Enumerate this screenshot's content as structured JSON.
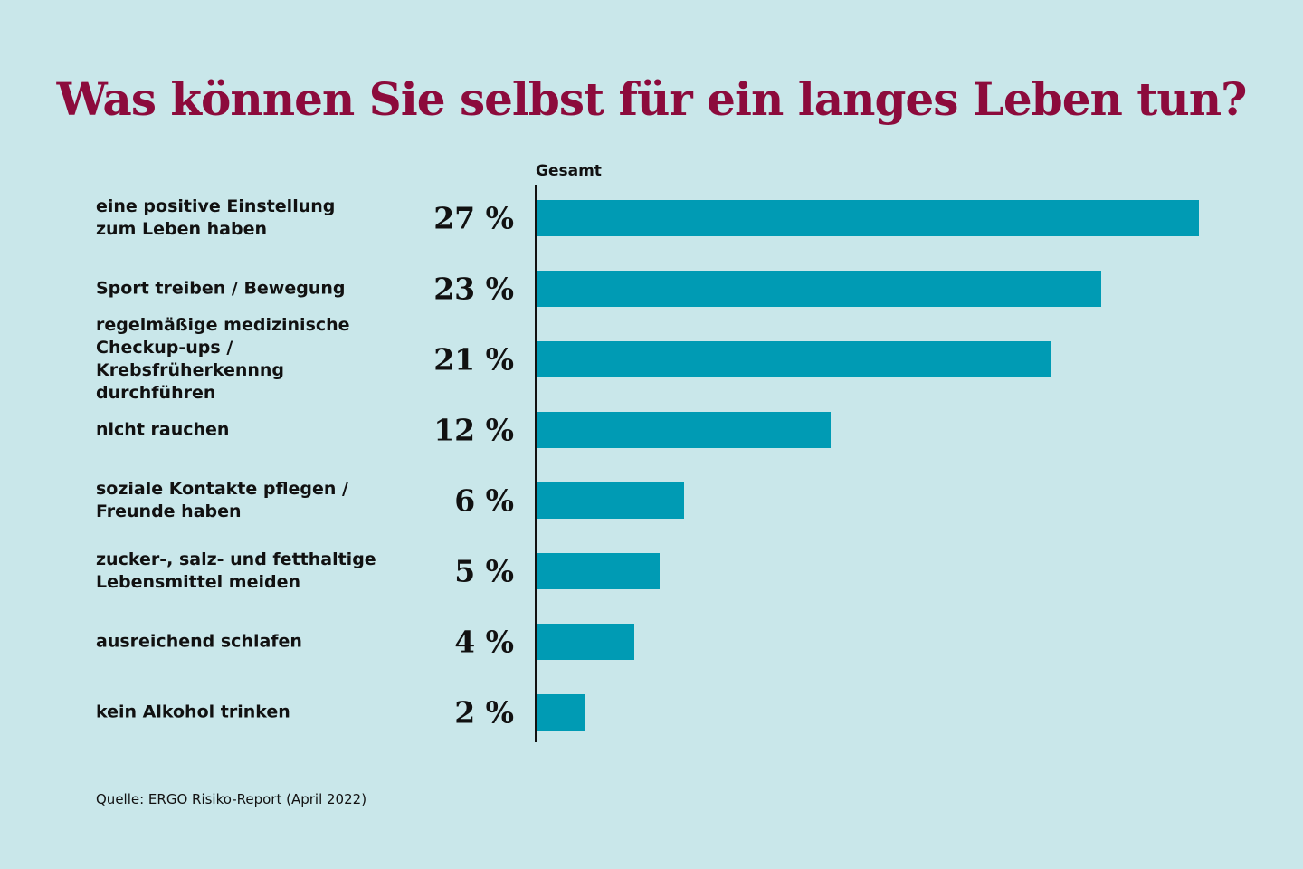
{
  "chart_data": {
    "type": "bar",
    "orientation": "horizontal",
    "title": "Was können Sie selbst für ein langes Leben tun?",
    "subtitle": "Gesamt",
    "categories": [
      "eine positive Einstellung\nzum Leben haben",
      "Sport treiben / Bewegung",
      "regelmäßige medizinische\nCheckup-ups / Krebsfrüherkennng\ndurchführen",
      "nicht rauchen",
      "soziale Kontakte pflegen /\nFreunde haben",
      "zucker-, salz- und fetthaltige\nLebensmittel meiden",
      "ausreichend schlafen",
      "kein Alkohol trinken"
    ],
    "values": [
      27,
      23,
      21,
      12,
      6,
      5,
      4,
      2
    ],
    "value_labels": [
      "27 %",
      "23 %",
      "21 %",
      "12 %",
      "6 %",
      "5 %",
      "4 %",
      "2 %"
    ],
    "color": "#009bb4",
    "source": "Quelle: ERGO Risiko-Report (April 2022)"
  }
}
